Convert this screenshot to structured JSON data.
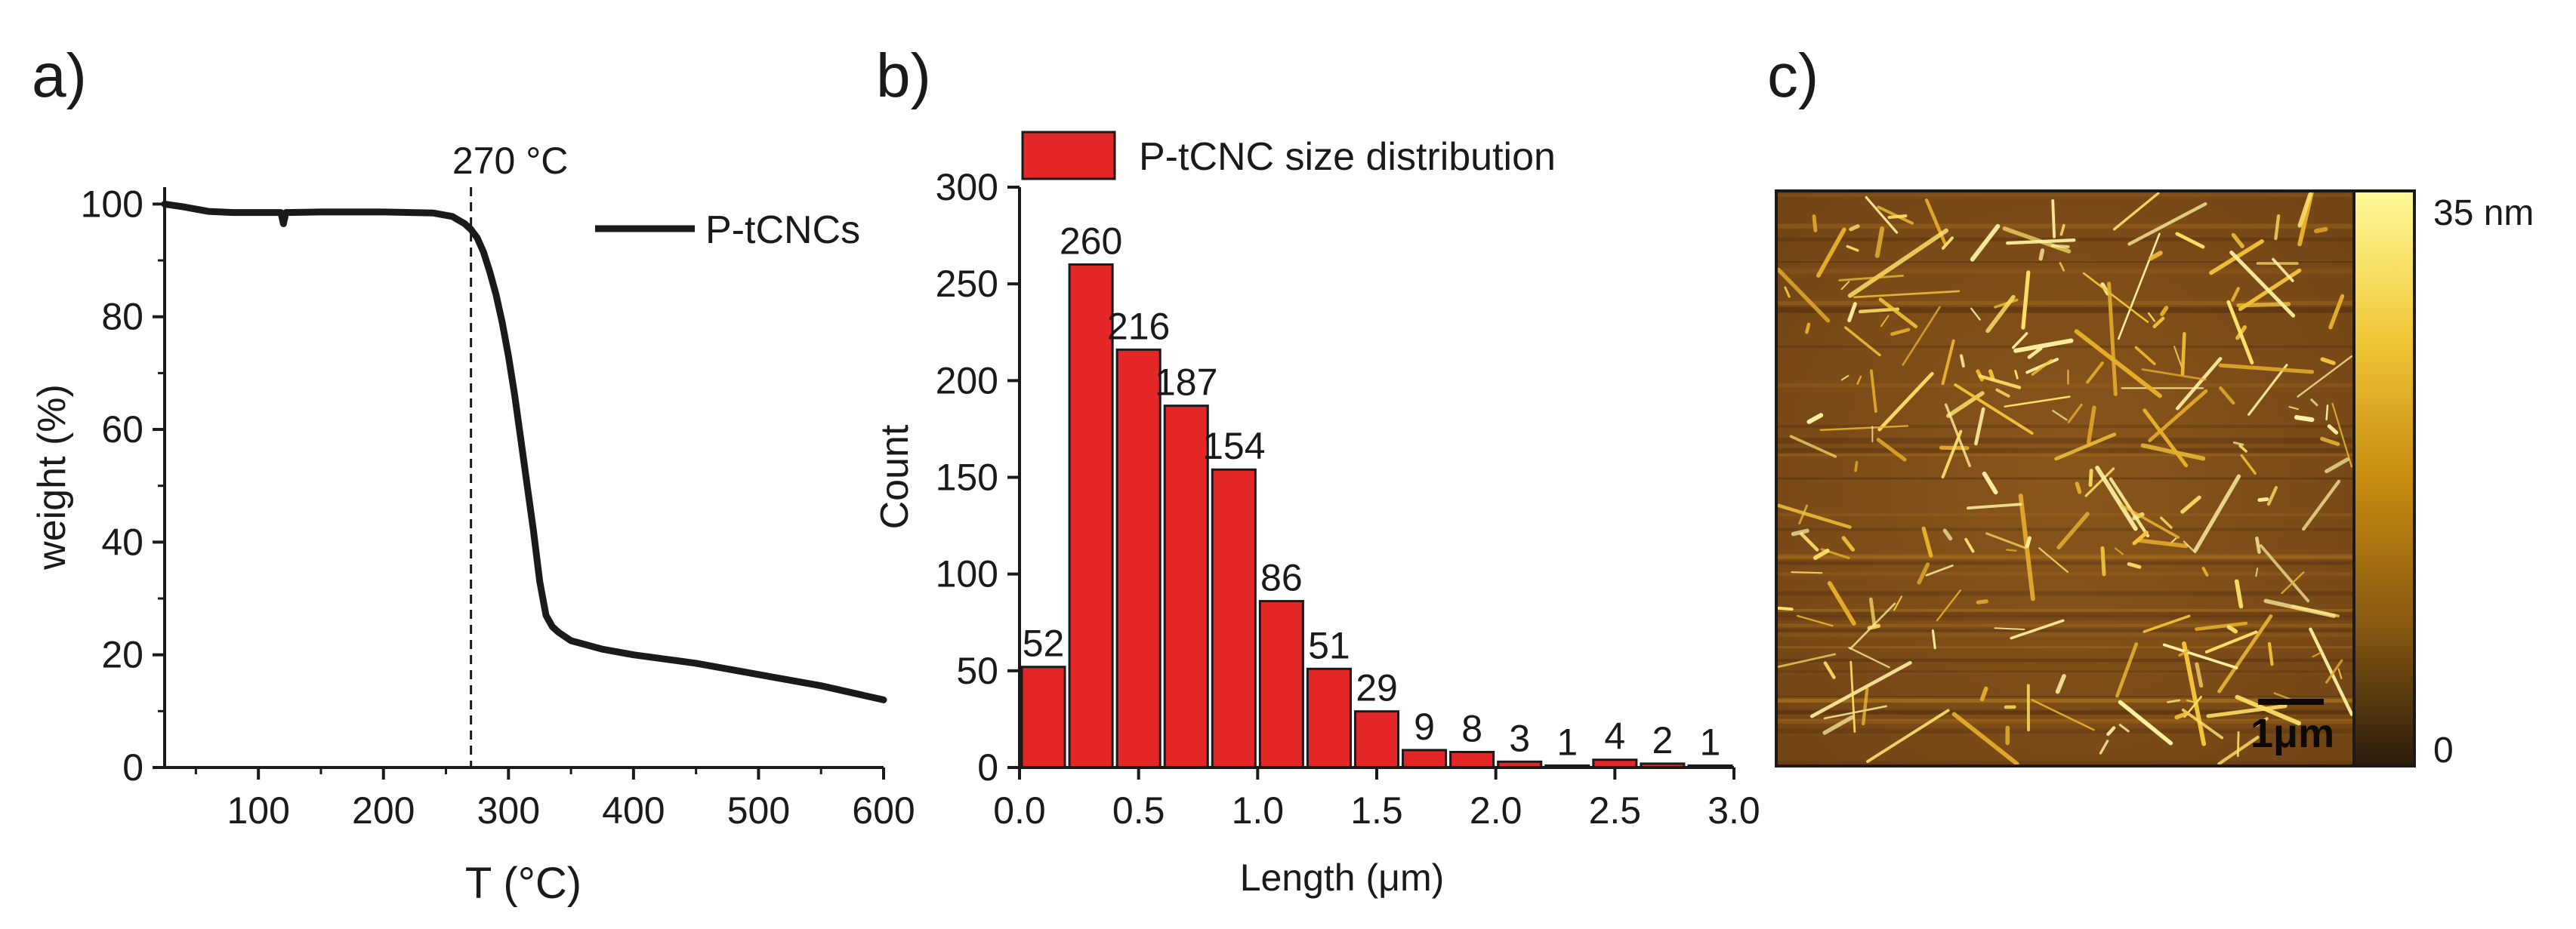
{
  "panel_labels": {
    "a": "a)",
    "b": "b)",
    "c": "c)"
  },
  "colors": {
    "curve": "#1a1a1a",
    "bar": "#e32626",
    "bar_edge": "#1a1a1a",
    "axis": "#1a1a1a"
  },
  "tga": {
    "ylabel": "weight (%)",
    "xlabel": "T (°C)",
    "legend": "P-tCNCs",
    "annotation": "270 °C",
    "annotation_x": 270,
    "xticks": [
      "100",
      "200",
      "300",
      "400",
      "500",
      "600"
    ],
    "yticks": [
      "0",
      "20",
      "40",
      "60",
      "80",
      "100"
    ]
  },
  "hist": {
    "legend": "P-tCNC size distribution",
    "ylabel": "Count",
    "xlabel": "Length",
    "xunit": "(μm)",
    "xticks": [
      "0.0",
      "0.5",
      "1.0",
      "1.5",
      "2.0",
      "2.5",
      "3.0"
    ],
    "yticks": [
      "0",
      "50",
      "100",
      "150",
      "200",
      "250",
      "300"
    ],
    "value_labels": [
      "52",
      "260",
      "216",
      "187",
      "154",
      "86",
      "51",
      "29",
      "9",
      "8",
      "3",
      "1",
      "4",
      "2",
      "1"
    ]
  },
  "afm": {
    "scale_max": "35 nm",
    "scale_min": "0",
    "scalebar": "1μm",
    "colormap": [
      "#fffa9a",
      "#f0c838",
      "#c88c10",
      "#8a5a12",
      "#2a1c0c"
    ]
  },
  "chart_data": [
    {
      "type": "line",
      "title": "",
      "xlabel": "T (°C)",
      "ylabel": "weight (%)",
      "xlim": [
        25,
        600
      ],
      "ylim": [
        0,
        103
      ],
      "series": [
        {
          "name": "P-tCNCs",
          "x": [
            25,
            40,
            60,
            80,
            118,
            120,
            122,
            150,
            200,
            240,
            255,
            265,
            270,
            275,
            280,
            285,
            290,
            295,
            300,
            305,
            310,
            315,
            320,
            325,
            330,
            335,
            340,
            350,
            375,
            400,
            450,
            500,
            550,
            600
          ],
          "y": [
            100,
            99.5,
            98.7,
            98.5,
            98.5,
            96.5,
            98.5,
            98.6,
            98.6,
            98.4,
            97.8,
            96.5,
            95.5,
            94,
            91.5,
            88,
            84,
            79,
            73,
            66,
            58,
            50,
            42,
            33,
            27,
            25,
            24,
            22.5,
            21,
            20,
            18.5,
            16.5,
            14.5,
            12
          ]
        }
      ],
      "vline": {
        "x": 270,
        "label": "270 °C",
        "style": "dashed"
      }
    },
    {
      "type": "bar",
      "title": "",
      "xlabel": "Length (μm)",
      "ylabel": "Count",
      "xlim": [
        0,
        3.0
      ],
      "ylim": [
        0,
        300
      ],
      "bin_width": 0.2,
      "series": [
        {
          "name": "P-tCNC size distribution",
          "x": [
            0.1,
            0.3,
            0.5,
            0.7,
            0.9,
            1.1,
            1.3,
            1.5,
            1.7,
            1.9,
            2.1,
            2.3,
            2.5,
            2.7,
            2.9
          ],
          "values": [
            52,
            260,
            216,
            187,
            154,
            86,
            51,
            29,
            9,
            8,
            3,
            1,
            4,
            2,
            1
          ]
        }
      ]
    }
  ]
}
